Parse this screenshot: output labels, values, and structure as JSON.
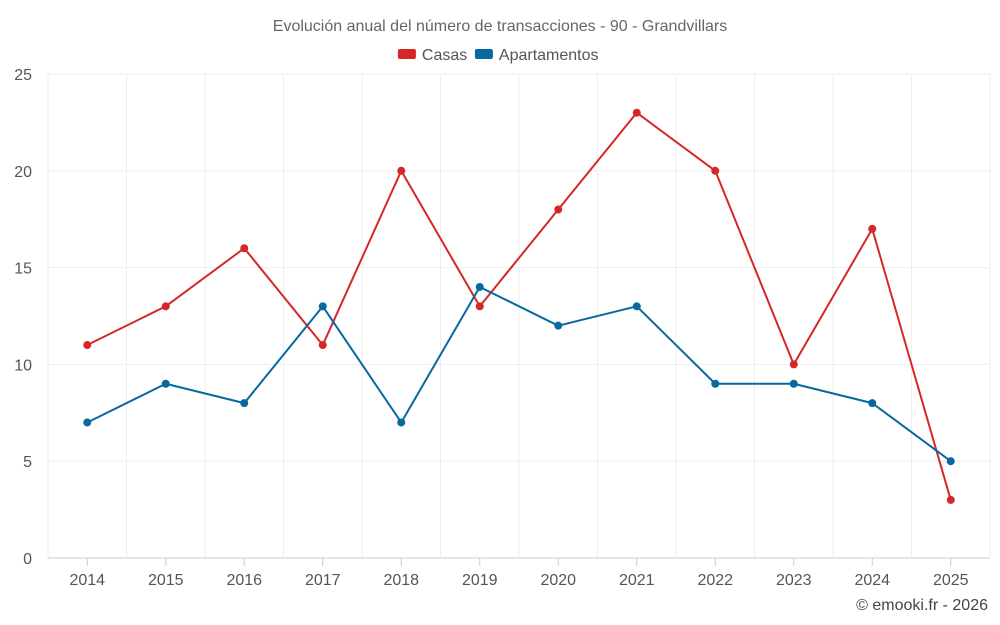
{
  "chart_data": {
    "type": "line",
    "title": "Evolución anual del número de transacciones - 90 - Grandvillars",
    "categories": [
      "2014",
      "2015",
      "2016",
      "2017",
      "2018",
      "2019",
      "2020",
      "2021",
      "2022",
      "2023",
      "2024",
      "2025"
    ],
    "series": [
      {
        "name": "Casas",
        "color": "#d62728",
        "values": [
          11,
          13,
          16,
          11,
          20,
          13,
          18,
          23,
          20,
          10,
          17,
          3
        ]
      },
      {
        "name": "Apartamentos",
        "color": "#0868a0",
        "values": [
          7,
          9,
          8,
          13,
          7,
          14,
          12,
          13,
          9,
          9,
          8,
          5
        ]
      }
    ],
    "ylim": [
      0,
      25
    ],
    "yticks": [
      0,
      5,
      10,
      15,
      20,
      25
    ],
    "xlabel": "",
    "ylabel": "",
    "grid": true,
    "legend_position": "top-center"
  },
  "credit": "© emooki.fr - 2026"
}
